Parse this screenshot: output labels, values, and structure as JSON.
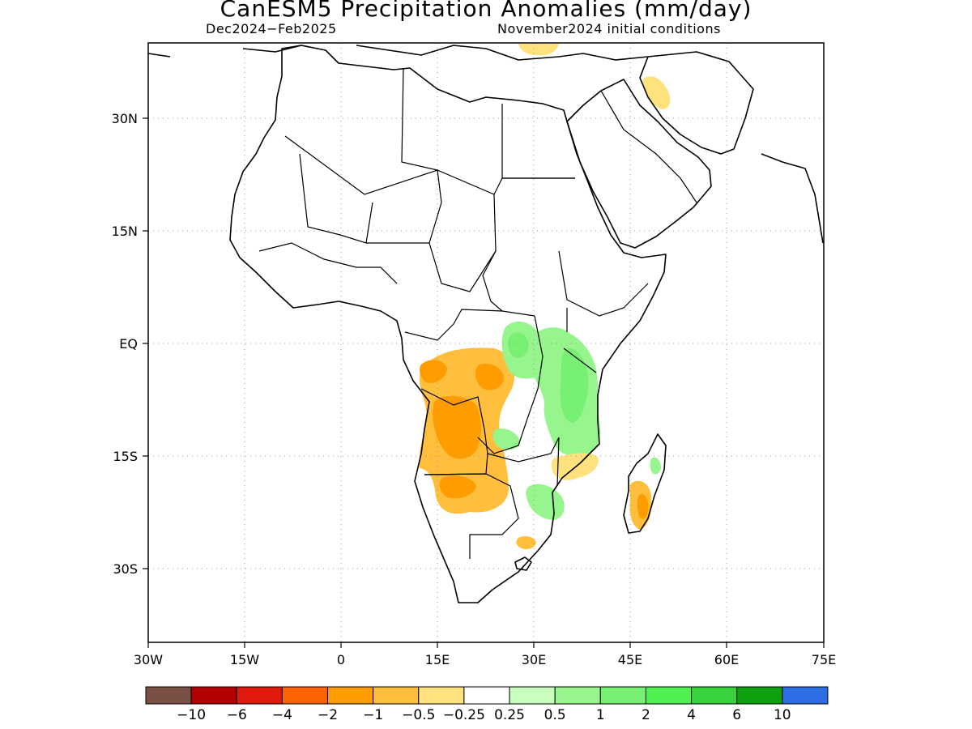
{
  "map": {
    "title": "CanESM5 Precipitation Anomalies (mm/day)",
    "period": "Dec2024−Feb2025",
    "initial_conditions": "November2024 initial conditions",
    "region": "Africa and Arabian Peninsula",
    "extent": {
      "lon": [
        -30,
        75
      ],
      "lat": [
        -40,
        40
      ]
    },
    "lat_ticks": [
      {
        "value": 30,
        "label": "30N"
      },
      {
        "value": 15,
        "label": "15N"
      },
      {
        "value": 0,
        "label": "EQ"
      },
      {
        "value": -15,
        "label": "15S"
      },
      {
        "value": -30,
        "label": "30S"
      }
    ],
    "lon_ticks": [
      {
        "value": -30,
        "label": "30W"
      },
      {
        "value": -15,
        "label": "15W"
      },
      {
        "value": 0,
        "label": "0"
      },
      {
        "value": 15,
        "label": "15E"
      },
      {
        "value": 30,
        "label": "30E"
      },
      {
        "value": 45,
        "label": "45E"
      },
      {
        "value": 60,
        "label": "60E"
      },
      {
        "value": 75,
        "label": "75E"
      }
    ],
    "gridlines": "dotted"
  },
  "colorbar": {
    "colors": [
      "#7a5044",
      "#b40000",
      "#e01b0d",
      "#ff6200",
      "#ff9d00",
      "#ffbe3c",
      "#ffe17d",
      "#ffffff",
      "#c8ffbe",
      "#96f58c",
      "#78f073",
      "#50f050",
      "#37d23c",
      "#0fa00f",
      "#2d6ee6"
    ],
    "labels": [
      "−10",
      "−6",
      "−4",
      "−2",
      "−1",
      "−0.5",
      "−0.25",
      "0.25",
      "0.5",
      "1",
      "2",
      "4",
      "6",
      "10"
    ]
  },
  "anomalies": [
    {
      "name": "angola-namibia-dry",
      "level": "-0.5 to -1",
      "color": "#ffbe3c"
    },
    {
      "name": "angola-core-dry",
      "level": "-1 to -2",
      "color": "#ff9d00"
    },
    {
      "name": "congo-dry",
      "level": "-0.5 to -1",
      "color": "#ffbe3c"
    },
    {
      "name": "east-africa-wet",
      "level": "0.25 to 1",
      "color": "#96f58c"
    },
    {
      "name": "east-africa-wet-core",
      "level": "1 to 2",
      "color": "#78f073"
    },
    {
      "name": "madagascar-dry",
      "level": "-0.25 to -1",
      "color": "#ffbe3c"
    },
    {
      "name": "iran-dry",
      "level": "-0.25 to -0.5",
      "color": "#ffe17d"
    },
    {
      "name": "zimbabwe-wet",
      "level": "0.25 to 1",
      "color": "#96f58c"
    }
  ]
}
